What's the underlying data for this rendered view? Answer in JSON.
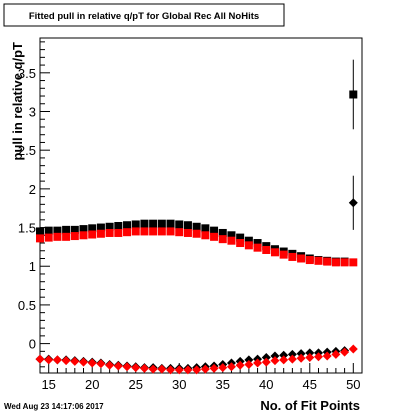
{
  "chart_data": {
    "type": "scatter",
    "title": "Fitted pull in relative q/pT for Global Rec All NoHits",
    "xlabel": "No. of Fit Points",
    "ylabel": "pull in relative q/pT",
    "footer": "Wed Aug 23 14:17:06 2017",
    "xlim": [
      14,
      51
    ],
    "ylim": [
      -0.38,
      3.95
    ],
    "x_ticks": [
      15,
      20,
      25,
      30,
      35,
      40,
      45,
      50
    ],
    "y_ticks": [
      0,
      0.5,
      1,
      1.5,
      2,
      2.5,
      3,
      3.5
    ],
    "y_tick_labels": [
      "0",
      "0.5",
      "1",
      "1.5",
      "2",
      "2.5",
      "3",
      "3.5"
    ],
    "grid": false,
    "legend": "none",
    "series": [
      {
        "marker": "square",
        "color": "#000000",
        "x": [
          14,
          15,
          16,
          17,
          18,
          19,
          20,
          21,
          22,
          23,
          24,
          25,
          26,
          27,
          28,
          29,
          30,
          31,
          32,
          33,
          34,
          35,
          36,
          37,
          38,
          39,
          40,
          41,
          42,
          43,
          44,
          45,
          46,
          47,
          48,
          49,
          50
        ],
        "y": [
          1.45,
          1.46,
          1.46,
          1.47,
          1.47,
          1.48,
          1.49,
          1.5,
          1.51,
          1.52,
          1.53,
          1.54,
          1.55,
          1.55,
          1.55,
          1.55,
          1.54,
          1.53,
          1.51,
          1.49,
          1.46,
          1.43,
          1.4,
          1.37,
          1.33,
          1.3,
          1.26,
          1.22,
          1.19,
          1.16,
          1.13,
          1.1,
          1.08,
          1.07,
          1.06,
          1.06,
          3.22
        ],
        "err": [
          0,
          0,
          0,
          0,
          0,
          0,
          0,
          0,
          0,
          0,
          0,
          0,
          0,
          0,
          0,
          0,
          0,
          0,
          0,
          0,
          0,
          0,
          0,
          0,
          0,
          0,
          0,
          0,
          0,
          0,
          0,
          0,
          0,
          0,
          0,
          0,
          0.45
        ]
      },
      {
        "marker": "square",
        "color": "#ff0000",
        "x": [
          14,
          15,
          16,
          17,
          18,
          19,
          20,
          21,
          22,
          23,
          24,
          25,
          26,
          27,
          28,
          29,
          30,
          31,
          32,
          33,
          34,
          35,
          36,
          37,
          38,
          39,
          40,
          41,
          42,
          43,
          44,
          45,
          46,
          47,
          48,
          49,
          50
        ],
        "y": [
          1.36,
          1.37,
          1.38,
          1.38,
          1.39,
          1.4,
          1.41,
          1.42,
          1.43,
          1.43,
          1.44,
          1.45,
          1.45,
          1.45,
          1.45,
          1.45,
          1.44,
          1.43,
          1.42,
          1.4,
          1.38,
          1.35,
          1.33,
          1.3,
          1.27,
          1.24,
          1.21,
          1.18,
          1.15,
          1.12,
          1.1,
          1.08,
          1.07,
          1.06,
          1.05,
          1.05,
          1.05
        ],
        "err": [
          0,
          0,
          0,
          0,
          0,
          0,
          0,
          0,
          0,
          0,
          0,
          0,
          0,
          0,
          0,
          0,
          0,
          0,
          0,
          0,
          0,
          0,
          0,
          0,
          0,
          0,
          0,
          0,
          0,
          0,
          0,
          0,
          0,
          0,
          0,
          0,
          0
        ]
      },
      {
        "marker": "diamond",
        "color": "#000000",
        "x": [
          14,
          15,
          16,
          17,
          18,
          19,
          20,
          21,
          22,
          23,
          24,
          25,
          26,
          27,
          28,
          29,
          30,
          31,
          32,
          33,
          34,
          35,
          36,
          37,
          38,
          39,
          40,
          41,
          42,
          43,
          44,
          45,
          46,
          47,
          48,
          49,
          50
        ],
        "y": [
          -0.2,
          -0.2,
          -0.21,
          -0.21,
          -0.22,
          -0.23,
          -0.24,
          -0.25,
          -0.27,
          -0.28,
          -0.29,
          -0.3,
          -0.31,
          -0.31,
          -0.32,
          -0.32,
          -0.32,
          -0.32,
          -0.31,
          -0.3,
          -0.29,
          -0.27,
          -0.25,
          -0.23,
          -0.21,
          -0.2,
          -0.18,
          -0.16,
          -0.15,
          -0.14,
          -0.13,
          -0.12,
          -0.12,
          -0.11,
          -0.1,
          -0.09,
          1.82
        ],
        "err": [
          0,
          0,
          0,
          0,
          0,
          0,
          0,
          0,
          0,
          0,
          0,
          0,
          0,
          0,
          0,
          0,
          0,
          0,
          0,
          0,
          0,
          0,
          0,
          0,
          0,
          0,
          0,
          0,
          0,
          0,
          0,
          0,
          0,
          0,
          0,
          0,
          0.35
        ]
      },
      {
        "marker": "diamond",
        "color": "#ff0000",
        "x": [
          14,
          15,
          16,
          17,
          18,
          19,
          20,
          21,
          22,
          23,
          24,
          25,
          26,
          27,
          28,
          29,
          30,
          31,
          32,
          33,
          34,
          35,
          36,
          37,
          38,
          39,
          40,
          41,
          42,
          43,
          44,
          45,
          46,
          47,
          48,
          49,
          50
        ],
        "y": [
          -0.2,
          -0.21,
          -0.21,
          -0.22,
          -0.23,
          -0.24,
          -0.25,
          -0.26,
          -0.28,
          -0.29,
          -0.3,
          -0.31,
          -0.32,
          -0.33,
          -0.33,
          -0.34,
          -0.34,
          -0.34,
          -0.34,
          -0.33,
          -0.32,
          -0.31,
          -0.3,
          -0.28,
          -0.27,
          -0.25,
          -0.24,
          -0.22,
          -0.21,
          -0.2,
          -0.19,
          -0.18,
          -0.17,
          -0.16,
          -0.14,
          -0.11,
          -0.07
        ],
        "err": [
          0,
          0,
          0,
          0,
          0,
          0,
          0,
          0,
          0,
          0,
          0,
          0,
          0,
          0,
          0,
          0,
          0,
          0,
          0,
          0,
          0,
          0,
          0,
          0,
          0,
          0,
          0,
          0,
          0,
          0,
          0,
          0,
          0,
          0,
          0,
          0,
          0
        ]
      }
    ]
  }
}
